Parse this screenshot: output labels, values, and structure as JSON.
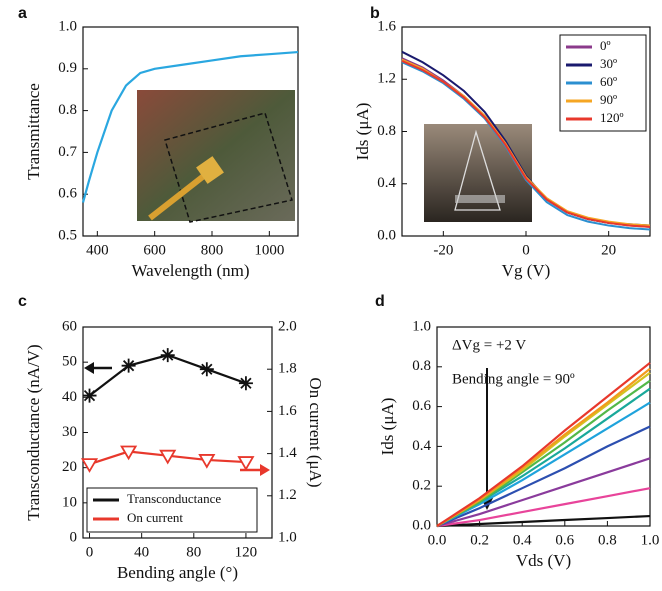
{
  "chart_data": [
    {
      "type": "line",
      "label": "a",
      "xlabel": "Wavelength (nm)",
      "ylabel": "Transmittance",
      "x": [
        350,
        370,
        400,
        450,
        500,
        550,
        600,
        700,
        800,
        900,
        1000,
        1100
      ],
      "series": [
        {
          "color": "#2aa7e0",
          "values": [
            0.58,
            0.63,
            0.7,
            0.8,
            0.86,
            0.89,
            0.9,
            0.91,
            0.92,
            0.93,
            0.935,
            0.94
          ]
        }
      ],
      "xlim": [
        350,
        1100
      ],
      "xticks": [
        400,
        600,
        800,
        1000
      ],
      "ylim": [
        0.5,
        1.0
      ],
      "yticks": [
        0.5,
        0.6,
        0.7,
        0.8,
        0.9,
        {
          "value": 1.0,
          "label": "1.0"
        }
      ]
    },
    {
      "type": "line",
      "label": "b",
      "xlabel": "Vg (V)",
      "ylabel": "Ids (μA)",
      "x": [
        -30,
        -25,
        -20,
        -15,
        -10,
        -5,
        0,
        5,
        10,
        15,
        20,
        25,
        30
      ],
      "series": [
        {
          "name": "0º",
          "color": "#8b3a8b",
          "values": [
            1.36,
            1.29,
            1.19,
            1.07,
            0.92,
            0.71,
            0.45,
            0.28,
            0.18,
            0.13,
            0.1,
            0.08,
            0.07
          ]
        },
        {
          "name": "30º",
          "color": "#1a1a6e",
          "values": [
            1.41,
            1.33,
            1.23,
            1.11,
            0.95,
            0.73,
            0.46,
            0.28,
            0.18,
            0.13,
            0.1,
            0.09,
            0.08
          ]
        },
        {
          "name": "60º",
          "color": "#2b8fd0",
          "values": [
            1.33,
            1.26,
            1.17,
            1.05,
            0.9,
            0.69,
            0.43,
            0.26,
            0.16,
            0.11,
            0.08,
            0.06,
            0.05
          ]
        },
        {
          "name": "90º",
          "color": "#f5a623",
          "values": [
            1.35,
            1.28,
            1.18,
            1.07,
            0.92,
            0.71,
            0.45,
            0.29,
            0.19,
            0.14,
            0.11,
            0.09,
            0.08
          ]
        },
        {
          "name": "120º",
          "color": "#e8382c",
          "values": [
            1.34,
            1.27,
            1.18,
            1.06,
            0.91,
            0.7,
            0.44,
            0.28,
            0.18,
            0.13,
            0.1,
            0.08,
            0.07
          ]
        }
      ],
      "legend": "upper right",
      "xlim": [
        -30,
        30
      ],
      "xticks": [
        -20,
        0,
        20
      ],
      "ylim": [
        0,
        1.6
      ],
      "yticks": [
        {
          "value": 0,
          "label": "0.0"
        },
        0.4,
        0.8,
        1.2,
        1.6
      ]
    },
    {
      "type": "line",
      "label": "c",
      "xlabel": "Bending angle (°)",
      "ylabel": "Transconductance (nA/V)",
      "y2label": "On current (μA)",
      "x": [
        0,
        30,
        60,
        90,
        120
      ],
      "series": [
        {
          "name": "Transconductance",
          "color": "#111111",
          "marker": "star",
          "values": [
            40.5,
            49,
            52,
            48,
            44
          ]
        },
        {
          "name": "On current",
          "color": "#e8382c",
          "marker": "triangle",
          "axis": "y2",
          "values": [
            1.35,
            1.41,
            1.39,
            1.37,
            1.36
          ]
        }
      ],
      "legend": "lower left",
      "xlim": [
        -5,
        140
      ],
      "xticks": [
        0,
        40,
        80,
        120
      ],
      "ylim": [
        0,
        60
      ],
      "yticks": [
        0,
        10,
        20,
        30,
        40,
        50,
        60
      ],
      "y2lim": [
        1.0,
        2.0
      ],
      "y2ticks": [
        {
          "value": 1.0,
          "label": "1.0"
        },
        1.2,
        1.4,
        1.6,
        1.8,
        {
          "value": 2.0,
          "label": "2.0"
        }
      ]
    },
    {
      "type": "line",
      "label": "d",
      "xlabel": "Vds (V)",
      "ylabel": "Ids (μA)",
      "annotations": [
        "ΔVg = +2 V",
        "Bending angle = 90º"
      ],
      "x": [
        0,
        0.2,
        0.4,
        0.6,
        0.8,
        1.0
      ],
      "series": [
        {
          "color": "#111111",
          "values": [
            0,
            0.01,
            0.02,
            0.03,
            0.04,
            0.05
          ]
        },
        {
          "color": "#e8449a",
          "values": [
            0,
            0.03,
            0.07,
            0.11,
            0.15,
            0.19
          ]
        },
        {
          "color": "#8a3b9c",
          "values": [
            0,
            0.06,
            0.13,
            0.2,
            0.27,
            0.34
          ]
        },
        {
          "color": "#2c4fb0",
          "values": [
            0,
            0.09,
            0.19,
            0.29,
            0.4,
            0.5
          ]
        },
        {
          "color": "#1fa3dc",
          "values": [
            0,
            0.11,
            0.23,
            0.36,
            0.49,
            0.62
          ]
        },
        {
          "color": "#1aa89a",
          "values": [
            0,
            0.12,
            0.25,
            0.39,
            0.54,
            0.69
          ]
        },
        {
          "color": "#52b848",
          "values": [
            0,
            0.12,
            0.27,
            0.42,
            0.58,
            0.73
          ]
        },
        {
          "color": "#d4c21f",
          "values": [
            0,
            0.13,
            0.28,
            0.45,
            0.61,
            0.77
          ]
        },
        {
          "color": "#f39a1e",
          "values": [
            0,
            0.13,
            0.29,
            0.46,
            0.62,
            0.79
          ]
        },
        {
          "color": "#e8382c",
          "values": [
            0,
            0.14,
            0.3,
            0.48,
            0.65,
            0.82
          ]
        }
      ],
      "xlim": [
        0,
        1.0
      ],
      "xticks": [
        {
          "value": 0,
          "label": "0.0"
        },
        0.2,
        0.4,
        0.6,
        0.8,
        {
          "value": 1.0,
          "label": "1.0"
        }
      ],
      "ylim": [
        0,
        1.0
      ],
      "yticks": [
        {
          "value": 0,
          "label": "0.0"
        },
        0.2,
        0.4,
        0.6,
        0.8,
        {
          "value": 1.0,
          "label": "1.0"
        }
      ]
    }
  ]
}
